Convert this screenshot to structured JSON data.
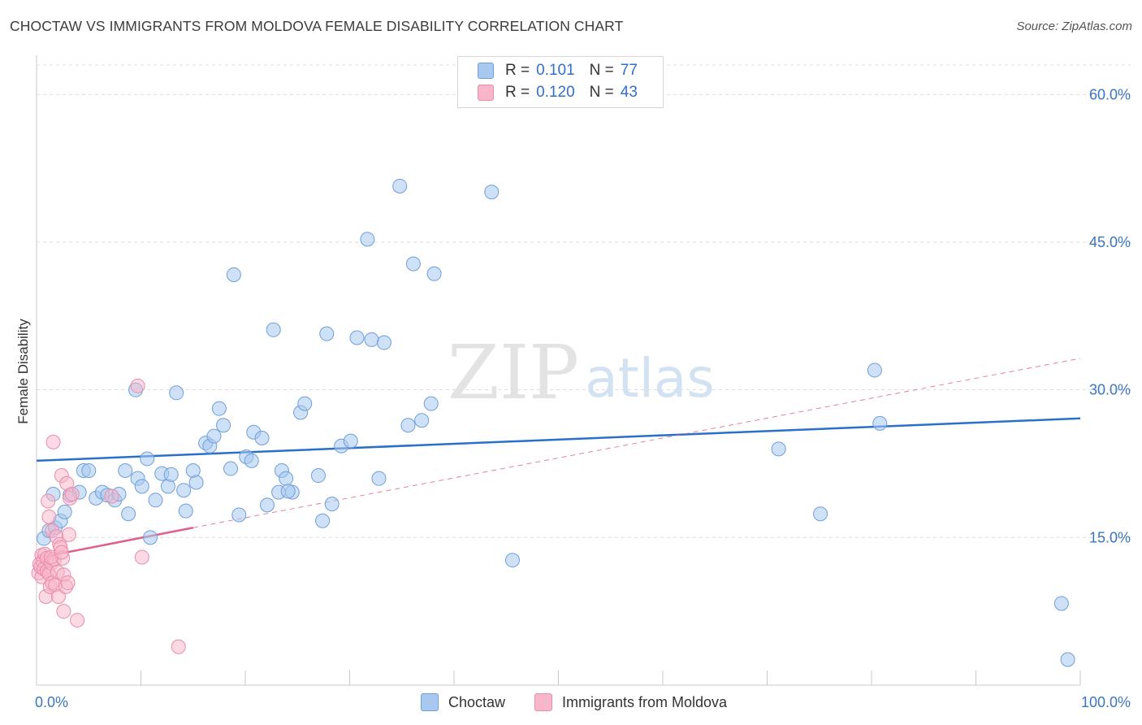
{
  "title": "CHOCTAW VS IMMIGRANTS FROM MOLDOVA FEMALE DISABILITY CORRELATION CHART",
  "source": "Source: ZipAtlas.com",
  "watermark": {
    "zip": "ZIP",
    "atlas": "atlas"
  },
  "legend": {
    "rows": [
      {
        "r_label": "R =",
        "r_value": "0.101",
        "n_label": "N =",
        "n_value": "77"
      },
      {
        "r_label": "R =",
        "r_value": "0.120",
        "n_label": "N =",
        "n_value": "43"
      }
    ]
  },
  "bottom_legend": {
    "series1": "Choctaw",
    "series2": "Immigrants from Moldova"
  },
  "colors": {
    "blue_fill": "#a8c8f0",
    "blue_stroke": "#6f9fd8",
    "blue_line": "#2a6fcc",
    "pink_fill": "#f7b6c9",
    "pink_stroke": "#ec8aaa",
    "pink_line": "#e0608a",
    "axis_text": "#3a75c4",
    "grid": "#dcdcdc"
  },
  "chart_data": {
    "type": "scatter",
    "title": "CHOCTAW VS IMMIGRANTS FROM MOLDOVA FEMALE DISABILITY CORRELATION CHART",
    "xlabel": "",
    "ylabel": "Female Disability",
    "xlim": [
      0,
      100
    ],
    "ylim": [
      0,
      63
    ],
    "x_tick_labels": [
      {
        "value": 0,
        "label": "0.0%"
      },
      {
        "value": 100,
        "label": "100.0%"
      }
    ],
    "y_ticks": [
      {
        "value": 15,
        "label": "15.0%"
      },
      {
        "value": 30,
        "label": "30.0%"
      },
      {
        "value": 45,
        "label": "45.0%"
      },
      {
        "value": 60,
        "label": "60.0%"
      }
    ],
    "series": [
      {
        "name": "Choctaw",
        "r": 0.101,
        "n": 77,
        "trend": {
          "x": [
            0,
            100
          ],
          "y": [
            22.8,
            27.1
          ],
          "style": "solid"
        },
        "points": [
          [
            0.7,
            14.9
          ],
          [
            1.2,
            15.7
          ],
          [
            1.8,
            16.0
          ],
          [
            2.3,
            16.7
          ],
          [
            2.7,
            17.6
          ],
          [
            3.2,
            19.3
          ],
          [
            4.1,
            19.6
          ],
          [
            4.5,
            21.8
          ],
          [
            5.0,
            21.8
          ],
          [
            5.7,
            19.0
          ],
          [
            6.3,
            19.6
          ],
          [
            6.8,
            19.3
          ],
          [
            7.5,
            18.8
          ],
          [
            7.9,
            19.4
          ],
          [
            8.5,
            21.8
          ],
          [
            8.8,
            17.4
          ],
          [
            9.5,
            30.0
          ],
          [
            9.7,
            21.0
          ],
          [
            10.1,
            20.2
          ],
          [
            10.6,
            23.0
          ],
          [
            10.9,
            15.0
          ],
          [
            11.4,
            18.8
          ],
          [
            12.0,
            21.5
          ],
          [
            12.6,
            20.2
          ],
          [
            12.9,
            21.4
          ],
          [
            13.4,
            29.7
          ],
          [
            14.1,
            19.8
          ],
          [
            14.3,
            17.7
          ],
          [
            15.0,
            21.8
          ],
          [
            15.3,
            20.6
          ],
          [
            16.2,
            24.6
          ],
          [
            16.6,
            24.3
          ],
          [
            17.0,
            25.3
          ],
          [
            17.5,
            28.1
          ],
          [
            17.9,
            26.4
          ],
          [
            18.6,
            22.0
          ],
          [
            18.9,
            41.7
          ],
          [
            19.4,
            17.3
          ],
          [
            20.1,
            23.2
          ],
          [
            20.6,
            22.8
          ],
          [
            20.8,
            25.7
          ],
          [
            21.6,
            25.1
          ],
          [
            22.1,
            18.3
          ],
          [
            22.7,
            36.1
          ],
          [
            23.2,
            19.6
          ],
          [
            23.5,
            21.8
          ],
          [
            23.9,
            21.0
          ],
          [
            24.5,
            19.6
          ],
          [
            25.3,
            27.7
          ],
          [
            25.7,
            28.6
          ],
          [
            27.0,
            21.3
          ],
          [
            27.4,
            16.7
          ],
          [
            27.8,
            35.7
          ],
          [
            28.3,
            18.4
          ],
          [
            29.2,
            24.3
          ],
          [
            30.1,
            24.8
          ],
          [
            30.7,
            35.3
          ],
          [
            31.7,
            45.3
          ],
          [
            32.1,
            35.1
          ],
          [
            32.8,
            21.0
          ],
          [
            33.3,
            34.8
          ],
          [
            34.8,
            50.7
          ],
          [
            35.6,
            26.4
          ],
          [
            36.1,
            42.8
          ],
          [
            36.9,
            26.9
          ],
          [
            37.8,
            28.6
          ],
          [
            38.1,
            41.8
          ],
          [
            43.6,
            50.1
          ],
          [
            45.6,
            12.7
          ],
          [
            71.1,
            24.0
          ],
          [
            75.1,
            17.4
          ],
          [
            80.3,
            32.0
          ],
          [
            80.8,
            26.6
          ],
          [
            98.2,
            8.3
          ],
          [
            98.8,
            2.6
          ],
          [
            1.6,
            19.4
          ],
          [
            24.1,
            19.7
          ]
        ]
      },
      {
        "name": "Immigrants from Moldova",
        "r": 0.12,
        "n": 43,
        "trend": {
          "x": [
            0,
            15,
            100
          ],
          "y": [
            12.9,
            16.0,
            33.2
          ],
          "solid_until": 15
        },
        "points": [
          [
            0.2,
            11.4
          ],
          [
            0.3,
            12.3
          ],
          [
            0.4,
            12.0
          ],
          [
            0.5,
            13.2
          ],
          [
            0.5,
            11.0
          ],
          [
            0.6,
            12.6
          ],
          [
            0.7,
            11.8
          ],
          [
            0.8,
            13.3
          ],
          [
            0.9,
            9.0
          ],
          [
            1.0,
            12.9
          ],
          [
            1.0,
            11.6
          ],
          [
            1.1,
            18.7
          ],
          [
            1.2,
            17.1
          ],
          [
            1.2,
            11.3
          ],
          [
            1.3,
            10.0
          ],
          [
            1.4,
            12.4
          ],
          [
            1.5,
            15.7
          ],
          [
            1.5,
            10.4
          ],
          [
            1.6,
            24.7
          ],
          [
            1.7,
            12.8
          ],
          [
            1.8,
            10.2
          ],
          [
            1.9,
            15.1
          ],
          [
            2.0,
            11.5
          ],
          [
            2.1,
            9.0
          ],
          [
            2.2,
            14.3
          ],
          [
            2.3,
            14.0
          ],
          [
            2.4,
            21.3
          ],
          [
            2.5,
            12.9
          ],
          [
            2.6,
            11.2
          ],
          [
            2.6,
            7.5
          ],
          [
            2.8,
            10.0
          ],
          [
            2.9,
            20.5
          ],
          [
            3.0,
            10.4
          ],
          [
            3.1,
            15.3
          ],
          [
            3.2,
            19.0
          ],
          [
            3.4,
            19.4
          ],
          [
            3.9,
            6.6
          ],
          [
            7.2,
            19.2
          ],
          [
            9.7,
            30.4
          ],
          [
            10.1,
            13.0
          ],
          [
            13.6,
            3.9
          ],
          [
            1.4,
            13.0
          ],
          [
            2.4,
            13.5
          ]
        ]
      }
    ]
  }
}
